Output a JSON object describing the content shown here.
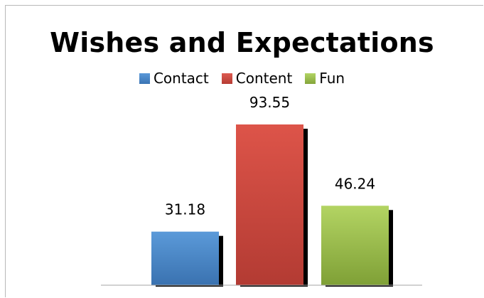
{
  "chart_data": {
    "type": "bar",
    "title": "Wishes and Expectations",
    "series": [
      {
        "name": "Contact",
        "value": 31.18,
        "color": "#4a86c8"
      },
      {
        "name": "Content",
        "value": 93.55,
        "color": "#cc4a40"
      },
      {
        "name": "Fun",
        "value": 46.24,
        "color": "#9cbf4b"
      }
    ],
    "ylim": [
      0,
      100
    ],
    "grid": false,
    "legend_position": "top"
  }
}
